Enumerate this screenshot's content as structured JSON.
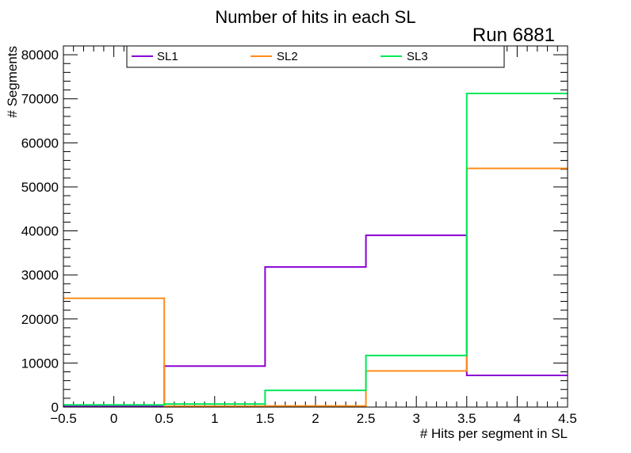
{
  "chart_data": {
    "type": "step-histogram",
    "title": "Number of hits in each SL",
    "annotation": "Run 6881",
    "xlabel": "# Hits per segment in SL",
    "ylabel": "# Segments",
    "xlim": [
      -0.5,
      4.5
    ],
    "ylim": [
      0,
      82000
    ],
    "x_ticks": [
      -0.5,
      0,
      0.5,
      1,
      1.5,
      2,
      2.5,
      3,
      3.5,
      4,
      4.5
    ],
    "x_tick_labels": [
      "−0.5",
      "0",
      "0.5",
      "1",
      "1.5",
      "2",
      "2.5",
      "3",
      "3.5",
      "4",
      "4.5"
    ],
    "y_ticks": [
      0,
      10000,
      20000,
      30000,
      40000,
      50000,
      60000,
      70000,
      80000
    ],
    "y_tick_labels": [
      "0",
      "10000",
      "20000",
      "30000",
      "40000",
      "50000",
      "60000",
      "70000",
      "80000"
    ],
    "bin_edges": [
      -0.5,
      0.5,
      1.5,
      2.5,
      3.5,
      4.5
    ],
    "legend_position": "top",
    "series": [
      {
        "name": "SL1",
        "color": "#8a00d4",
        "values": [
          150,
          9300,
          31800,
          39000,
          7200
        ]
      },
      {
        "name": "SL2",
        "color": "#ff8c1a",
        "values": [
          24700,
          200,
          250,
          8200,
          54200
        ]
      },
      {
        "name": "SL3",
        "color": "#00e85a",
        "values": [
          500,
          700,
          3800,
          11700,
          71200
        ]
      }
    ]
  }
}
